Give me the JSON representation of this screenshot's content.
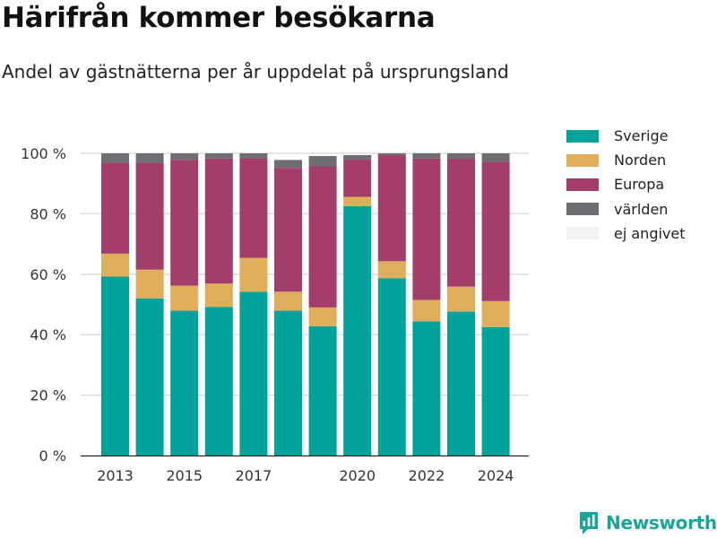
{
  "title": "Härifrån kommer besökarna",
  "subtitle": "Andel av gästnätterna per år uppdelat på ursprungsland",
  "brand": {
    "name": "Newsworthy",
    "icon": "newsworthy-logo-icon"
  },
  "colors": {
    "Sverige": "#00a29a",
    "Norden": "#dfae5b",
    "Europa": "#a33e6a",
    "världen": "#6e6e72",
    "ej angivet": "#f2f2f2"
  },
  "chart_data": {
    "type": "bar",
    "stacked": true,
    "categories": [
      "2013",
      "2014",
      "2015",
      "2016",
      "2017",
      "2018",
      "2019",
      "2020",
      "2021",
      "2022",
      "2023",
      "2024"
    ],
    "x_tick_labels": [
      "2013",
      "2015",
      "2017",
      "2020",
      "2022",
      "2024"
    ],
    "y_ticks": [
      0,
      20,
      40,
      60,
      80,
      100
    ],
    "y_tick_labels": [
      "0 %",
      "20 %",
      "40 %",
      "60 %",
      "80 %",
      "100 %"
    ],
    "ylim": [
      0,
      100
    ],
    "grid": true,
    "legend_position": "right",
    "series": [
      {
        "name": "Sverige",
        "values": [
          59.2,
          52.0,
          47.9,
          49.2,
          54.2,
          47.9,
          42.8,
          82.5,
          58.7,
          44.4,
          47.6,
          42.5
        ]
      },
      {
        "name": "Norden",
        "values": [
          7.6,
          9.5,
          8.3,
          7.7,
          11.2,
          6.3,
          6.2,
          3.1,
          5.6,
          7.1,
          8.3,
          8.6
        ]
      },
      {
        "name": "Europa",
        "values": [
          30.1,
          35.4,
          41.6,
          41.4,
          33.0,
          41.0,
          46.7,
          12.3,
          35.1,
          46.8,
          42.3,
          46.1
        ]
      },
      {
        "name": "världen",
        "values": [
          3.1,
          3.1,
          2.2,
          1.7,
          1.6,
          2.6,
          3.4,
          1.5,
          0.6,
          1.7,
          1.8,
          2.8
        ]
      },
      {
        "name": "ej angivet",
        "values": [
          0,
          0,
          0,
          0,
          0,
          0,
          0,
          0,
          0,
          0,
          0,
          0
        ]
      }
    ]
  }
}
